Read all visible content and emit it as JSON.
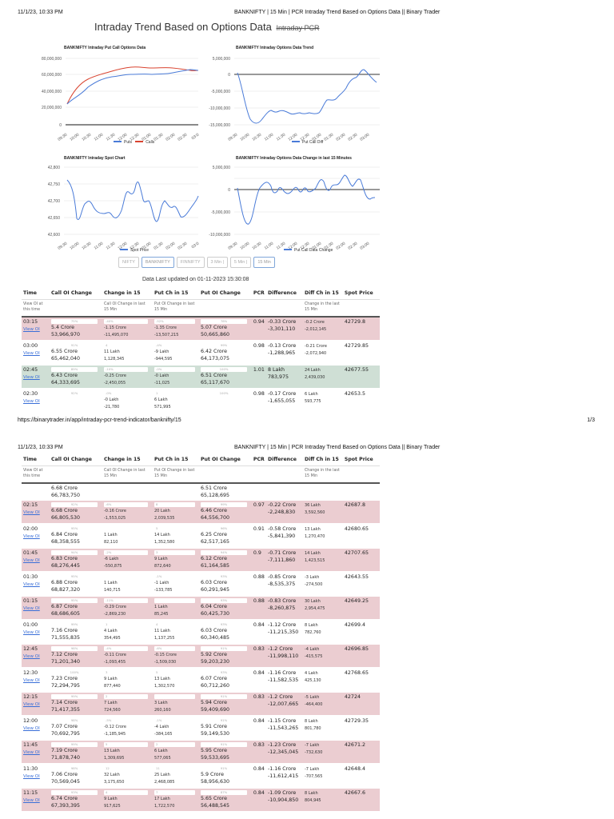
{
  "print_header": {
    "date": "11/1/23, 10:33 PM",
    "title": "BANKNIFTY | 15 Min | PCR Intraday Trend Based on Options Data || Binary Trader"
  },
  "print_footer": {
    "url": "https://binarytrader.in/app/intraday-pcr-trend-indicator/banknifty/15",
    "page": "1/3"
  },
  "page_title": {
    "main": "Intraday Trend Based on Options Data",
    "strike": "Intraday PCR"
  },
  "chart_data": [
    {
      "type": "line",
      "title": "BANKNIFTY Intraday Put Call Options Data",
      "categories": [
        "09:30",
        "10:00",
        "10:30",
        "11:00",
        "11:30",
        "12:00",
        "12:30",
        "01:00",
        "01:30",
        "02:00",
        "02:30",
        "03:00"
      ],
      "series": [
        {
          "name": "Puts",
          "color": "#4a7bd8",
          "values": [
            25500000,
            37000000,
            50000000,
            56000000,
            59500000,
            59400000,
            60700000,
            60340000,
            60430000,
            62500000,
            65100000,
            65100000
          ]
        },
        {
          "name": "Calls",
          "color": "#d9432f",
          "values": [
            25500000,
            45000000,
            61000000,
            66500000,
            71000000,
            70700000,
            72300000,
            71500000,
            68700000,
            68400000,
            66800000,
            66800000
          ]
        }
      ],
      "yticks": [
        "0",
        "20,000,000",
        "40,000,000",
        "60,000,000",
        "80,000,000"
      ],
      "ylim": [
        0,
        80000000
      ],
      "legend_position": "bottom"
    },
    {
      "type": "line",
      "title": "BANKNIFTY Intraday Options Data Trend",
      "categories": [
        "09:30",
        "10:00",
        "10:30",
        "11:00",
        "11:30",
        "12:00",
        "12:30",
        "01:00",
        "01:30",
        "02:00",
        "02:30",
        "03:00"
      ],
      "series": [
        {
          "name": "Put Call Diff",
          "color": "#4a7bd8",
          "values": [
            800000,
            -14000000,
            -11000000,
            -11000000,
            -12300000,
            -11500000,
            -11600000,
            -11200000,
            -8300000,
            -6000000,
            -1000000,
            -3300000
          ]
        }
      ],
      "yticks": [
        "-15,000,000",
        "-10,000,000",
        "-5,000,000",
        "0",
        "5,000,000"
      ],
      "ylim": [
        -15000000,
        5000000
      ],
      "legend_position": "bottom"
    },
    {
      "type": "line",
      "title": "BANKNIFTY Intraday Spot Chart",
      "categories": [
        "09:30",
        "10:00",
        "10:30",
        "11:00",
        "11:30",
        "12:00",
        "12:30",
        "01:00",
        "01:30",
        "02:00",
        "02:30",
        "03:00"
      ],
      "series": [
        {
          "name": "Spot Price",
          "color": "#4a7bd8",
          "values": [
            42765,
            42645,
            42700,
            42663,
            42650,
            42730,
            42768,
            42699,
            42643,
            42707,
            42653,
            42718
          ]
        }
      ],
      "yticks": [
        "42,600",
        "42,650",
        "42,700",
        "42,750",
        "42,800"
      ],
      "ylim": [
        42600,
        42800
      ],
      "legend_position": "bottom"
    },
    {
      "type": "line",
      "title": "BANKNIFTY Intraday Options Data Change in last 15 Minutes",
      "categories": [
        "09:30",
        "10:00",
        "10:30",
        "11:00",
        "11:30",
        "12:00",
        "12:30",
        "01:00",
        "01:30",
        "02:00",
        "02:30",
        "03:00"
      ],
      "series": [
        {
          "name": "Put Call Data Change",
          "color": "#4a7bd8",
          "values": [
            800000,
            -7500000,
            2000000,
            700000,
            -700000,
            800000,
            400000,
            2800000,
            1300000,
            3500000,
            2400000,
            -2000000
          ]
        }
      ],
      "yticks": [
        "-10,000,000",
        "-5,000,000",
        "0",
        "5,000,000"
      ],
      "ylim": [
        -10000000,
        5000000
      ],
      "legend_position": "bottom"
    }
  ],
  "buttons": [
    {
      "label": "NIFTY",
      "active": false
    },
    {
      "label": "BANKNIFTY",
      "active": true
    },
    {
      "label": "FINNIFTY",
      "active": false
    },
    {
      "label": "3 Min |",
      "active": false
    },
    {
      "label": "5 Min |",
      "active": false
    },
    {
      "label": "15 Min",
      "active": true
    }
  ],
  "updated": "Data Last updated on 01-11-2023 15:30:08",
  "table": {
    "headers": [
      "Time",
      "Call OI Change",
      "Change in 15",
      "Put Ch in 15",
      "Put OI Change",
      "PCR",
      "Difference",
      "Diff Ch in 15",
      "Spot Price"
    ],
    "subheaders": [
      "View OI at this time",
      "",
      "Call OI Change in last 15 Min",
      "Put OI Change in last 15 Min",
      "",
      "",
      "",
      "Change in the last 15 Min",
      ""
    ],
    "view_label": "View OI",
    "page1_rows": [
      {
        "time": "03:15",
        "tone": "red",
        "call_pct": "75%",
        "call_cr": "5.4 Crore",
        "call_abs": "53,966,970",
        "cch_pct": "-40%",
        "cch_l": "-1.15 Crore",
        "cch_abs": "-11,495,070",
        "pch_pct": "-52%",
        "pch_l": "-1.35 Crore",
        "pch_abs": "-13,507,215",
        "put_pct": "78%",
        "put_cr": "5.07 Crore",
        "put_abs": "50,665,860",
        "pcr": "0.94",
        "diff_cr": "-0.33 Crore",
        "diff_abs": "-3,301,110",
        "dch_l": "-0.2 Crore",
        "dch_abs": "-2,012,145",
        "spot": "42729.8"
      },
      {
        "time": "03:00",
        "tone": "white",
        "call_pct": "91%",
        "call_cr": "6.55 Crore",
        "call_abs": "65,462,040",
        "cch_pct": "4",
        "cch_l": "11 Lakh",
        "cch_abs": "1,128,345",
        "pch_pct": "-4%",
        "pch_l": "-9 Lakh",
        "pch_abs": "-944,595",
        "put_pct": "99%",
        "put_cr": "6.42 Crore",
        "put_abs": "64,173,075",
        "pcr": "0.98",
        "diff_cr": "-0.13 Crore",
        "diff_abs": "-1,288,965",
        "dch_l": "-0.21 Crore",
        "dch_abs": "-2,072,940",
        "spot": "42729.85"
      },
      {
        "time": "02:45",
        "tone": "green",
        "call_pct": "89%",
        "call_cr": "6.43 Crore",
        "call_abs": "64,333,695",
        "cch_pct": "-10%",
        "cch_l": "-0.25 Crore",
        "cch_abs": "-2,450,055",
        "pch_pct": "-0%",
        "pch_l": "-0 Lakh",
        "pch_abs": "-11,025",
        "put_pct": "100%",
        "put_cr": "6.51 Crore",
        "put_abs": "65,117,670",
        "pcr": "1.01",
        "diff_cr": "8 Lakh",
        "diff_abs": "783,975",
        "dch_l": "24 Lakh",
        "dch_abs": "2,439,030",
        "spot": "42677.55"
      },
      {
        "time": "02:30",
        "tone": "white",
        "call_pct": "92%",
        "call_cr": "",
        "call_abs": "",
        "cch_pct": "-0%",
        "cch_l": "-0 Lakh",
        "cch_abs": "-21,780",
        "pch_pct": "1",
        "pch_l": "6 Lakh",
        "pch_abs": "571,995",
        "put_pct": "100%",
        "put_cr": "",
        "put_abs": "",
        "pcr": "0.98",
        "diff_cr": "-0.17 Crore",
        "diff_abs": "-1,655,055",
        "dch_l": "6 Lakh",
        "dch_abs": "593,775",
        "spot": "42653.5"
      }
    ],
    "page2_carry": {
      "call_cr": "6.68 Crore",
      "call_abs": "66,783,750",
      "put_cr": "6.51 Crore",
      "put_abs": "65,128,695"
    },
    "page2_rows": [
      {
        "time": "02:15",
        "tone": "red",
        "call_pct": "92%",
        "call_cr": "6.68 Crore",
        "call_abs": "66,805,530",
        "cch_pct": "-6%",
        "cch_l": "-0.16 Crore",
        "cch_abs": "-1,553,025",
        "pch_pct": "8",
        "pch_l": "20 Lakh",
        "pch_abs": "2,039,535",
        "put_pct": "99%",
        "put_cr": "6.46 Crore",
        "put_abs": "64,556,700",
        "pcr": "0.97",
        "diff_cr": "-0.22 Crore",
        "diff_abs": "-2,248,830",
        "dch_l": "36 Lakh",
        "dch_abs": "3,592,560",
        "spot": "42687.8"
      },
      {
        "time": "02:00",
        "tone": "white",
        "call_pct": "95%",
        "call_cr": "6.84 Crore",
        "call_abs": "68,358,555",
        "cch_pct": "",
        "cch_l": "1 Lakh",
        "cch_abs": "82,110",
        "pch_pct": "5",
        "pch_l": "14 Lakh",
        "pch_abs": "1,352,580",
        "put_pct": "96%",
        "put_cr": "6.25 Crore",
        "put_abs": "62,517,165",
        "pcr": "0.91",
        "diff_cr": "-0.58 Crore",
        "diff_abs": "-5,841,390",
        "dch_l": "13 Lakh",
        "dch_abs": "1,270,470",
        "spot": "42680.65"
      },
      {
        "time": "01:45",
        "tone": "red",
        "call_pct": "94%",
        "call_cr": "6.83 Crore",
        "call_abs": "68,276,445",
        "cch_pct": "-2%",
        "cch_l": "-6 Lakh",
        "cch_abs": "-550,875",
        "pch_pct": "3",
        "pch_l": "9 Lakh",
        "pch_abs": "872,640",
        "put_pct": "94%",
        "put_cr": "6.12 Crore",
        "put_abs": "61,164,585",
        "pcr": "0.9",
        "diff_cr": "-0.71 Crore",
        "diff_abs": "-7,111,860",
        "dch_l": "14 Lakh",
        "dch_abs": "1,423,515",
        "spot": "42707.65"
      },
      {
        "time": "01:30",
        "tone": "white",
        "call_pct": "95%",
        "call_cr": "6.88 Crore",
        "call_abs": "68,827,320",
        "cch_pct": "",
        "cch_l": "1 Lakh",
        "cch_abs": "140,715",
        "pch_pct": "-1%",
        "pch_l": "-1 Lakh",
        "pch_abs": "-133,785",
        "put_pct": "93%",
        "put_cr": "6.03 Crore",
        "put_abs": "60,291,945",
        "pcr": "0.88",
        "diff_cr": "-0.85 Crore",
        "diff_abs": "-8,535,375",
        "dch_l": "-3 Lakh",
        "dch_abs": "-274,500",
        "spot": "42643.55"
      },
      {
        "time": "01:15",
        "tone": "red",
        "call_pct": "95%",
        "call_cr": "6.87 Crore",
        "call_abs": "68,686,605",
        "cch_pct": "-11%",
        "cch_l": "-0.29 Crore",
        "cch_abs": "-2,869,230",
        "pch_pct": "",
        "pch_l": "1 Lakh",
        "pch_abs": "85,245",
        "put_pct": "93%",
        "put_cr": "6.04 Crore",
        "put_abs": "60,425,730",
        "pcr": "0.88",
        "diff_cr": "-0.83 Crore",
        "diff_abs": "-8,260,875",
        "dch_l": "30 Lakh",
        "dch_abs": "2,954,475",
        "spot": "42649.25"
      },
      {
        "time": "01:00",
        "tone": "white",
        "call_pct": "99%",
        "call_cr": "7.16 Crore",
        "call_abs": "71,555,835",
        "cch_pct": "1",
        "cch_l": "4 Lakh",
        "cch_abs": "354,495",
        "pch_pct": "4",
        "pch_l": "11 Lakh",
        "pch_abs": "1,137,255",
        "put_pct": "93%",
        "put_cr": "6.03 Crore",
        "put_abs": "60,340,485",
        "pcr": "0.84",
        "diff_cr": "-1.12 Crore",
        "diff_abs": "-11,215,350",
        "dch_l": "8 Lakh",
        "dch_abs": "782,760",
        "spot": "42699.4"
      },
      {
        "time": "12:45",
        "tone": "red",
        "call_pct": "98%",
        "call_cr": "7.12 Crore",
        "call_abs": "71,201,340",
        "cch_pct": "-4%",
        "cch_l": "-0.11 Crore",
        "cch_abs": "-1,093,455",
        "pch_pct": "-6%",
        "pch_l": "-0.15 Crore",
        "pch_abs": "-1,509,030",
        "put_pct": "91%",
        "put_cr": "5.92 Crore",
        "put_abs": "59,203,230",
        "pcr": "0.83",
        "diff_cr": "-1.2 Crore",
        "diff_abs": "-11,998,110",
        "dch_l": "-4 Lakh",
        "dch_abs": "-415,575",
        "spot": "42696.85"
      },
      {
        "time": "12:30",
        "tone": "white",
        "call_pct": "100%",
        "call_cr": "7.23 Crore",
        "call_abs": "72,294,795",
        "cch_pct": "3",
        "cch_l": "9 Lakh",
        "cch_abs": "877,440",
        "pch_pct": "5",
        "pch_l": "13 Lakh",
        "pch_abs": "1,302,570",
        "put_pct": "93%",
        "put_cr": "6.07 Crore",
        "put_abs": "60,712,260",
        "pcr": "0.84",
        "diff_cr": "-1.16 Crore",
        "diff_abs": "-11,582,535",
        "dch_l": "4 Lakh",
        "dch_abs": "425,130",
        "spot": "42768.65"
      },
      {
        "time": "12:15",
        "tone": "red",
        "call_pct": "99%",
        "call_cr": "7.14 Crore",
        "call_abs": "71,417,355",
        "cch_pct": "2",
        "cch_l": "7 Lakh",
        "cch_abs": "724,560",
        "pch_pct": "",
        "pch_l": "3 Lakh",
        "pch_abs": "260,160",
        "put_pct": "91%",
        "put_cr": "5.94 Crore",
        "put_abs": "59,409,690",
        "pcr": "0.83",
        "diff_cr": "-1.2 Crore",
        "diff_abs": "-12,007,665",
        "dch_l": "-5 Lakh",
        "dch_abs": "-464,400",
        "spot": "42724"
      },
      {
        "time": "12:00",
        "tone": "white",
        "call_pct": "98%",
        "call_cr": "7.07 Crore",
        "call_abs": "70,692,795",
        "cch_pct": "-5%",
        "cch_l": "-0.12 Crore",
        "cch_abs": "-1,185,945",
        "pch_pct": "-1%",
        "pch_l": "-4 Lakh",
        "pch_abs": "-384,165",
        "put_pct": "91%",
        "put_cr": "5.91 Crore",
        "put_abs": "59,149,530",
        "pcr": "0.84",
        "diff_cr": "-1.15 Crore",
        "diff_abs": "-11,543,265",
        "dch_l": "8 Lakh",
        "dch_abs": "801,780",
        "spot": "42729.35"
      },
      {
        "time": "11:45",
        "tone": "red",
        "call_pct": "99%",
        "call_cr": "7.19 Crore",
        "call_abs": "71,878,740",
        "cch_pct": "5",
        "cch_l": "13 Lakh",
        "cch_abs": "1,309,695",
        "pch_pct": "2",
        "pch_l": "6 Lakh",
        "pch_abs": "577,065",
        "put_pct": "91%",
        "put_cr": "5.95 Crore",
        "put_abs": "59,533,695",
        "pcr": "0.83",
        "diff_cr": "-1.23 Crore",
        "diff_abs": "-12,345,045",
        "dch_l": "-7 Lakh",
        "dch_abs": "-732,630",
        "spot": "42671.2"
      },
      {
        "time": "11:30",
        "tone": "white",
        "call_pct": "98%",
        "call_cr": "7.06 Crore",
        "call_abs": "70,569,045",
        "cch_pct": "12",
        "cch_l": "32 Lakh",
        "cch_abs": "3,175,650",
        "pch_pct": "11",
        "pch_l": "25 Lakh",
        "pch_abs": "2,468,085",
        "put_pct": "91%",
        "put_cr": "5.9 Crore",
        "put_abs": "58,956,630",
        "pcr": "0.84",
        "diff_cr": "-1.16 Crore",
        "diff_abs": "-11,612,415",
        "dch_l": "-7 Lakh",
        "dch_abs": "-707,565",
        "spot": "42648.4"
      },
      {
        "time": "11:15",
        "tone": "red",
        "call_pct": "93%",
        "call_cr": "6.74 Crore",
        "call_abs": "67,393,395",
        "cch_pct": "4",
        "cch_l": "9 Lakh",
        "cch_abs": "917,625",
        "pch_pct": "7",
        "pch_l": "17 Lakh",
        "pch_abs": "1,722,570",
        "put_pct": "87%",
        "put_cr": "5.65 Crore",
        "put_abs": "56,488,545",
        "pcr": "0.84",
        "diff_cr": "-1.09 Crore",
        "diff_abs": "-10,904,850",
        "dch_l": "8 Lakh",
        "dch_abs": "804,945",
        "spot": "42667.6"
      }
    ]
  }
}
